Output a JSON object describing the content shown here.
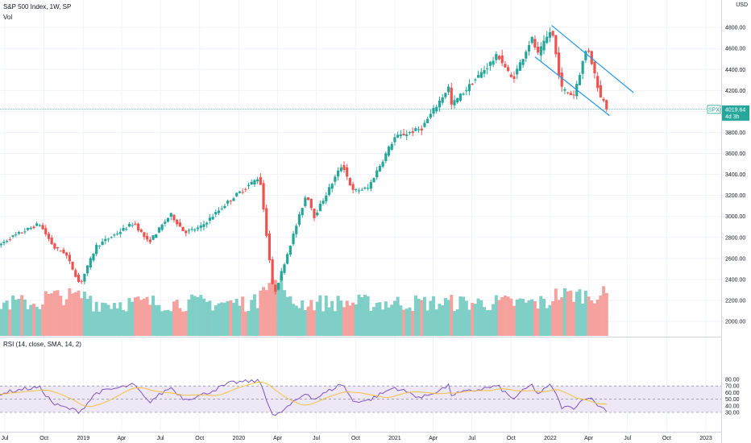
{
  "header": {
    "title": "S&P 500 Index, 1W, SP",
    "volume_label": "Vol",
    "currency_label": "USD"
  },
  "price_tag": {
    "symbol": "SPX",
    "price": "4019.64",
    "countdown": "4d 3h"
  },
  "rsi_panel": {
    "label": "RSI (14, close, SMA, 14, 2)"
  },
  "colors": {
    "up": "#26a69a",
    "down": "#ef5350",
    "vol_up": "#7fcfc6",
    "vol_down": "#f5a29f",
    "channel": "#2196f3",
    "rsi_line": "#7e57c2",
    "rsi_sma": "#f5c242",
    "rsi_band": "#ede7f6"
  },
  "chart_data": [
    {
      "type": "candlestick",
      "title": "S&P 500 Index, 1W, SP",
      "y_axis_ticks": [
        2000,
        2200,
        2400,
        2600,
        2800,
        3000,
        3200,
        3400,
        3600,
        3800,
        4000,
        4200,
        4400,
        4600,
        4800
      ],
      "y_axis_tick_labels": [
        "2000.00",
        "2200.00",
        "2400.00",
        "2600.00",
        "2800.00",
        "3000.00",
        "3200.00",
        "3400.00",
        "3600.00",
        "3800.00",
        "4000.00",
        "4200.00",
        "4400.00",
        "4600.00",
        "4800.00"
      ],
      "x_axis_ticks": [
        "Jul",
        "Oct",
        "2019",
        "Apr",
        "Jul",
        "Oct",
        "2020",
        "Apr",
        "Jul",
        "Oct",
        "2021",
        "Apr",
        "Jul",
        "Oct",
        "2022",
        "Apr",
        "Jul",
        "Oct",
        "2023"
      ],
      "x_axis_dates": [
        "2018-07-01",
        "2018-10-01",
        "2019-01-01",
        "2019-04-01",
        "2019-07-01",
        "2019-10-01",
        "2020-01-01",
        "2020-04-01",
        "2020-07-01",
        "2020-10-01",
        "2021-01-01",
        "2021-04-01",
        "2021-07-01",
        "2021-10-01",
        "2022-01-01",
        "2022-04-01",
        "2022-07-01",
        "2022-10-01",
        "2023-01-01"
      ],
      "last_price": 4019.64,
      "price_anchors": [
        [
          "2018-06-15",
          2720
        ],
        [
          "2018-07-15",
          2800
        ],
        [
          "2018-09-20",
          2930
        ],
        [
          "2018-10-25",
          2700
        ],
        [
          "2018-11-20",
          2650
        ],
        [
          "2018-12-24",
          2350
        ],
        [
          "2019-02-01",
          2720
        ],
        [
          "2019-04-30",
          2940
        ],
        [
          "2019-06-03",
          2750
        ],
        [
          "2019-07-25",
          3020
        ],
        [
          "2019-08-26",
          2850
        ],
        [
          "2019-10-01",
          2890
        ],
        [
          "2019-12-15",
          3170
        ],
        [
          "2020-02-19",
          3380
        ],
        [
          "2020-03-23",
          2240
        ],
        [
          "2020-06-08",
          3220
        ],
        [
          "2020-06-26",
          3000
        ],
        [
          "2020-08-31",
          3500
        ],
        [
          "2020-09-24",
          3240
        ],
        [
          "2020-10-30",
          3270
        ],
        [
          "2020-12-31",
          3750
        ],
        [
          "2021-03-05",
          3840
        ],
        [
          "2021-05-07",
          4230
        ],
        [
          "2021-05-14",
          4060
        ],
        [
          "2021-08-31",
          4540
        ],
        [
          "2021-10-04",
          4300
        ],
        [
          "2021-11-18",
          4700
        ],
        [
          "2021-12-03",
          4540
        ],
        [
          "2022-01-04",
          4790
        ],
        [
          "2022-01-27",
          4220
        ],
        [
          "2022-02-24",
          4150
        ],
        [
          "2022-03-29",
          4630
        ],
        [
          "2022-04-29",
          4130
        ],
        [
          "2022-05-06",
          4120
        ],
        [
          "2022-05-12",
          3900
        ],
        [
          "2022-05-17",
          4019.64
        ]
      ],
      "descending_channel": {
        "upper": [
          [
            "2022-01-04",
            4820
          ],
          [
            "2022-07-15",
            4180
          ]
        ],
        "lower": [
          [
            "2021-11-26",
            4520
          ],
          [
            "2022-05-20",
            3960
          ]
        ]
      },
      "volume_panel": {
        "label": "Vol",
        "bars": "weekly, colored by candle direction"
      }
    },
    {
      "type": "line",
      "title": "RSI (14, close, SMA, 14, 2)",
      "y_axis_ticks": [
        30,
        40,
        50,
        60,
        70,
        80
      ],
      "y_axis_tick_labels": [
        "30.00",
        "40.00",
        "50.00",
        "60.00",
        "70.00",
        "80.00"
      ],
      "band": [
        30,
        70
      ],
      "midline": 50,
      "rsi_anchors": [
        [
          "2018-06-15",
          58
        ],
        [
          "2018-08-10",
          65
        ],
        [
          "2018-09-20",
          68
        ],
        [
          "2018-10-25",
          42
        ],
        [
          "2018-12-24",
          31
        ],
        [
          "2019-02-01",
          60
        ],
        [
          "2019-04-30",
          72
        ],
        [
          "2019-06-03",
          45
        ],
        [
          "2019-07-25",
          68
        ],
        [
          "2019-08-26",
          50
        ],
        [
          "2019-10-01",
          55
        ],
        [
          "2019-12-15",
          75
        ],
        [
          "2020-02-19",
          78
        ],
        [
          "2020-03-23",
          22
        ],
        [
          "2020-06-08",
          60
        ],
        [
          "2020-06-26",
          50
        ],
        [
          "2020-08-31",
          74
        ],
        [
          "2020-09-24",
          47
        ],
        [
          "2020-10-30",
          48
        ],
        [
          "2020-12-31",
          68
        ],
        [
          "2021-03-05",
          52
        ],
        [
          "2021-05-07",
          70
        ],
        [
          "2021-05-14",
          57
        ],
        [
          "2021-08-31",
          70
        ],
        [
          "2021-10-04",
          50
        ],
        [
          "2021-11-18",
          72
        ],
        [
          "2021-12-03",
          58
        ],
        [
          "2022-01-04",
          72
        ],
        [
          "2022-01-27",
          38
        ],
        [
          "2022-02-24",
          37
        ],
        [
          "2022-03-29",
          55
        ],
        [
          "2022-04-29",
          38
        ],
        [
          "2022-05-17",
          33
        ]
      ]
    }
  ]
}
